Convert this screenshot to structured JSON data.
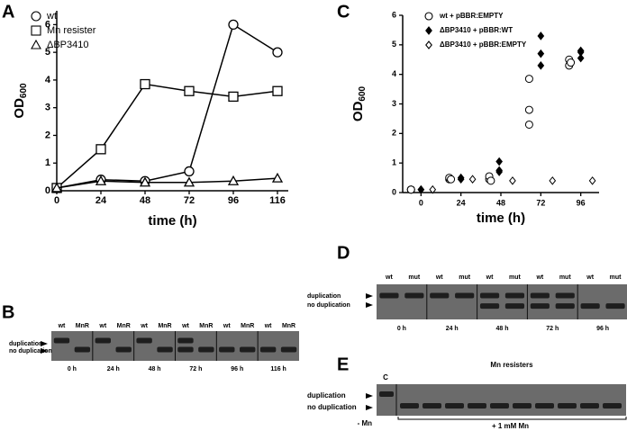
{
  "chart_data": [
    {
      "type": "line",
      "panel": "A",
      "categories": [
        "0",
        "24",
        "48",
        "72",
        "96",
        "116"
      ],
      "ylim": [
        0,
        6.5
      ],
      "yticks": [
        0,
        1,
        2,
        3,
        4,
        5,
        6
      ],
      "y_label": "OD",
      "y_label_sub": "600",
      "x_label": "time (h)",
      "legend": "top-left",
      "series": [
        {
          "name": "wt",
          "marker": "circle",
          "color": "#ffffff",
          "values": [
            0.1,
            0.4,
            0.35,
            0.7,
            6.0,
            5.0
          ]
        },
        {
          "name": "Mn resister",
          "marker": "square",
          "color": "#ffffff",
          "values": [
            0.1,
            1.5,
            3.85,
            3.6,
            3.4,
            3.6
          ]
        },
        {
          "name": "ΔBP3410",
          "marker": "triangle",
          "color": "#ffffff",
          "values": [
            0.1,
            0.35,
            0.3,
            0.3,
            0.35,
            0.45
          ]
        }
      ]
    },
    {
      "type": "scatter",
      "panel": "C",
      "xlim": [
        -11,
        107
      ],
      "xticks": [
        0,
        24,
        48,
        72,
        96
      ],
      "ylim": [
        0,
        6
      ],
      "yticks": [
        0,
        1,
        2,
        3,
        4,
        5,
        6
      ],
      "y_label": "OD",
      "y_label_sub": "600",
      "x_label": "time (h)",
      "legend": "top-left",
      "series": [
        {
          "name": "wt + pBBR:EMPTY",
          "marker": "circle",
          "color": "#ffffff",
          "x": [
            -6,
            -6,
            -6,
            17,
            17,
            18,
            41,
            41,
            42,
            65,
            65,
            65,
            89,
            89,
            90
          ],
          "values": [
            0.1,
            0.1,
            0.1,
            0.45,
            0.5,
            0.45,
            0.45,
            0.55,
            0.4,
            2.3,
            2.8,
            3.85,
            4.3,
            4.5,
            4.4
          ]
        },
        {
          "name": "ΔBP3410 + pBBR:WT",
          "marker": "diamond",
          "color": "#000000",
          "x": [
            0,
            0,
            24,
            24,
            47,
            47,
            47,
            72,
            72,
            72,
            96,
            96,
            96
          ],
          "values": [
            0.1,
            0.1,
            0.5,
            0.45,
            1.05,
            0.75,
            0.7,
            5.3,
            4.7,
            4.3,
            4.8,
            4.75,
            4.55
          ]
        },
        {
          "name": "ΔBP3410 + pBBR:EMPTY",
          "marker": "diamond",
          "color": "#ffffff",
          "x": [
            7,
            31,
            55,
            79,
            103
          ],
          "values": [
            0.1,
            0.45,
            0.4,
            0.4,
            0.4
          ]
        }
      ]
    }
  ],
  "gels": [
    {
      "panel": "B",
      "lanes": [
        "wt",
        "MnR",
        "wt",
        "MnR",
        "wt",
        "MnR",
        "wt",
        "MnR",
        "wt",
        "MnR",
        "wt",
        "MnR"
      ],
      "times": [
        "0 h",
        "24 h",
        "48 h",
        "72 h",
        "96 h",
        "116 h"
      ],
      "band_labels": [
        "duplication",
        "no duplication"
      ]
    },
    {
      "panel": "D",
      "lanes": [
        "wt",
        "mut",
        "wt",
        "mut",
        "wt",
        "mut",
        "wt",
        "mut",
        "wt",
        "mut"
      ],
      "times": [
        "0 h",
        "24 h",
        "48 h",
        "72 h",
        "96 h"
      ],
      "band_labels": [
        "duplication",
        "no duplication"
      ]
    },
    {
      "panel": "E",
      "control_label": "C",
      "group_label": "Mn resisters",
      "band_labels": [
        "duplication",
        "no duplication"
      ],
      "conditions": [
        "- Mn",
        "+ 1 mM Mn"
      ]
    }
  ]
}
